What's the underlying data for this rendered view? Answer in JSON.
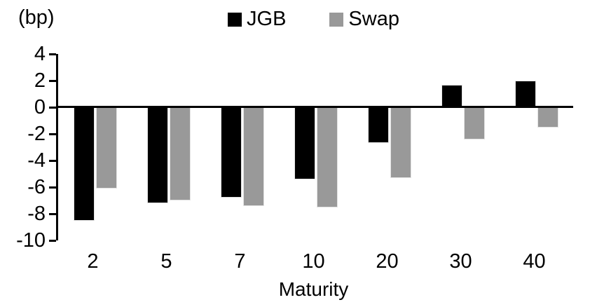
{
  "unit_label": "(bp)",
  "chart_data": {
    "type": "bar",
    "title": "",
    "xlabel": "Maturity",
    "ylabel": "(bp)",
    "categories": [
      "2",
      "5",
      "7",
      "10",
      "20",
      "30",
      "40"
    ],
    "series": [
      {
        "name": "JGB",
        "color": "#000000",
        "values": [
          -8.5,
          -7.2,
          -6.8,
          -5.4,
          -2.7,
          1.7,
          2.0
        ]
      },
      {
        "name": "Swap",
        "color": "#999999",
        "values": [
          -6.1,
          -7.0,
          -7.4,
          -7.5,
          -5.3,
          -2.4,
          -1.5
        ]
      }
    ],
    "ylim": [
      -10,
      4
    ],
    "ytick_step": 2,
    "yticks": [
      4,
      2,
      0,
      -2,
      -4,
      -6,
      -8,
      -10
    ],
    "grid": false,
    "legend_position": "top-center",
    "axis_color": "#000000"
  }
}
